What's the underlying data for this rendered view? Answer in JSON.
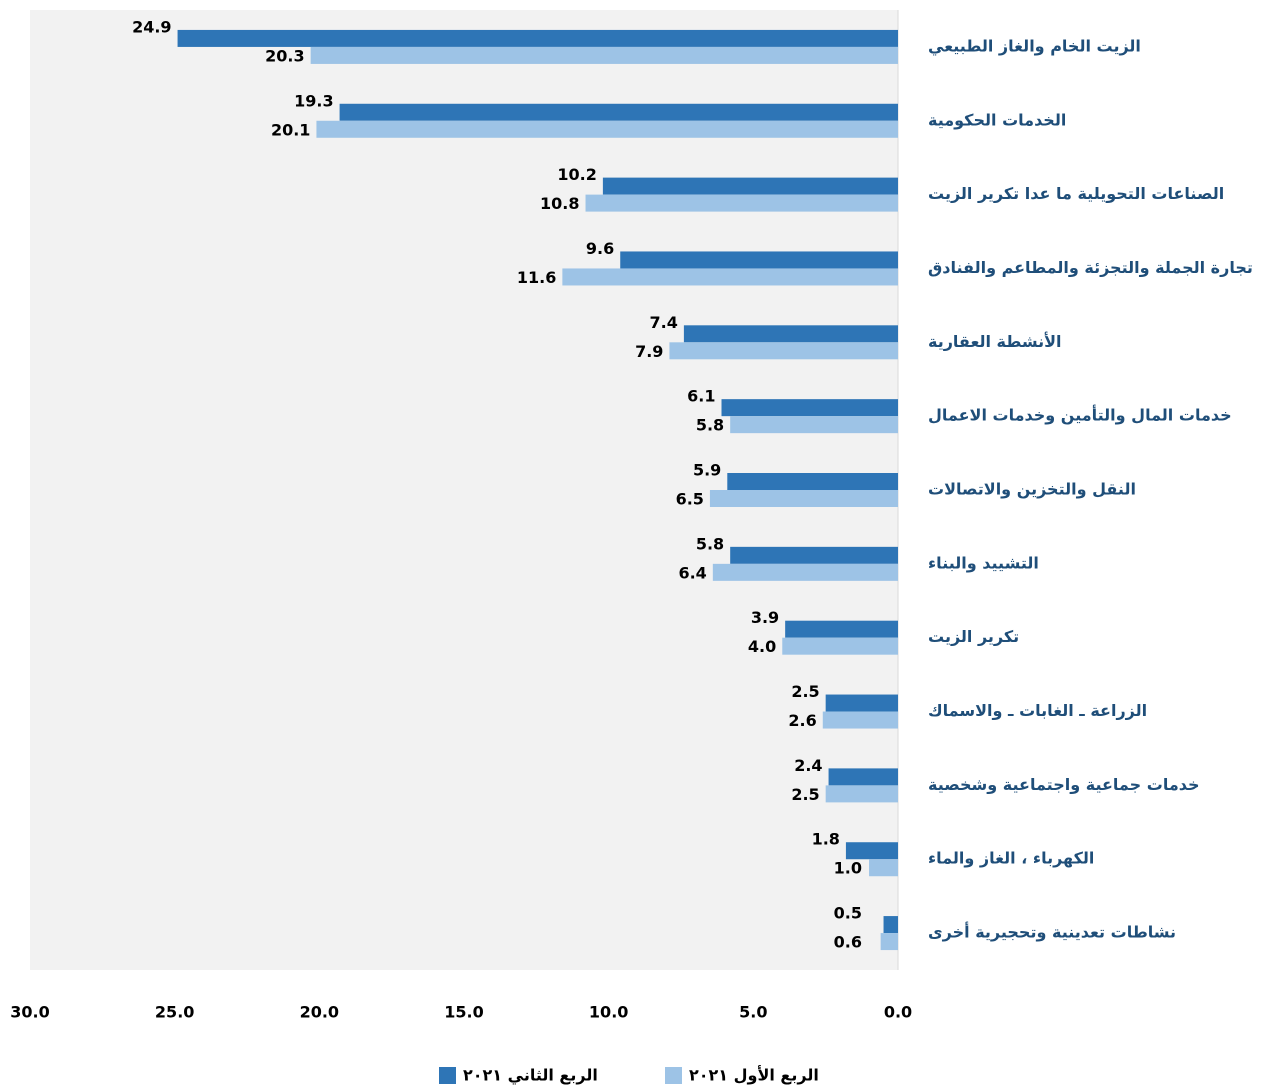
{
  "chart_data": {
    "type": "hbar",
    "categories": [
      "الزيت الخام والغاز الطبيعي",
      "الخدمات الحكومية",
      "الصناعات التحويلية ما عدا تكرير الزيت",
      "تجارة الجملة والتجزئة والمطاعم والفنادق",
      "الأنشطة العقارية",
      "خدمات المال والتأمين وخدمات الاعمال",
      "النقل والتخزين والاتصالات",
      "التشييد والبناء",
      "تكرير الزيت",
      "الزراعة ـ الغابات ـ والاسماك",
      "خدمات جماعية واجتماعية وشخصية",
      "الكهرباء ، الغاز والماء",
      "نشاطات تعدينية وتحجيرية أخرى"
    ],
    "series": [
      {
        "name": "الربع الثاني ٢٠٢١",
        "color": "#2e75b6",
        "values": [
          24.9,
          19.3,
          10.2,
          9.6,
          7.4,
          6.1,
          5.9,
          5.8,
          3.9,
          2.5,
          2.4,
          1.8,
          0.5
        ],
        "value_labels": [
          "24.9",
          "19.3",
          "10.2",
          "9.6",
          "7.4",
          "6.1",
          "5.9",
          "5.8",
          "3.9",
          "2.5",
          "2.4",
          "1.8",
          "0.5"
        ]
      },
      {
        "name": "الربع الأول ٢٠٢١",
        "color": "#9dc3e6",
        "values": [
          20.3,
          20.1,
          10.8,
          11.6,
          7.9,
          5.8,
          6.5,
          6.4,
          4.0,
          2.6,
          2.5,
          1.0,
          0.6
        ],
        "value_labels": [
          "20.3",
          "20.1",
          "10.8",
          "11.6",
          "7.9",
          "5.8",
          "6.5",
          "6.4",
          "4.0",
          "2.6",
          "2.5",
          "1.0",
          "0.6"
        ]
      }
    ],
    "xlim": [
      0,
      30
    ],
    "x_reversed": true,
    "xticks": [
      {
        "value": 0,
        "label": "0.0"
      },
      {
        "value": 5,
        "label": "5.0"
      },
      {
        "value": 10,
        "label": "10.0"
      },
      {
        "value": 15,
        "label": "15.0"
      },
      {
        "value": 20,
        "label": "20.0"
      },
      {
        "value": 25,
        "label": "25.0"
      },
      {
        "value": 30,
        "label": "30.0"
      }
    ],
    "legend": "bottom",
    "plot_background": "#f2f2f2"
  }
}
